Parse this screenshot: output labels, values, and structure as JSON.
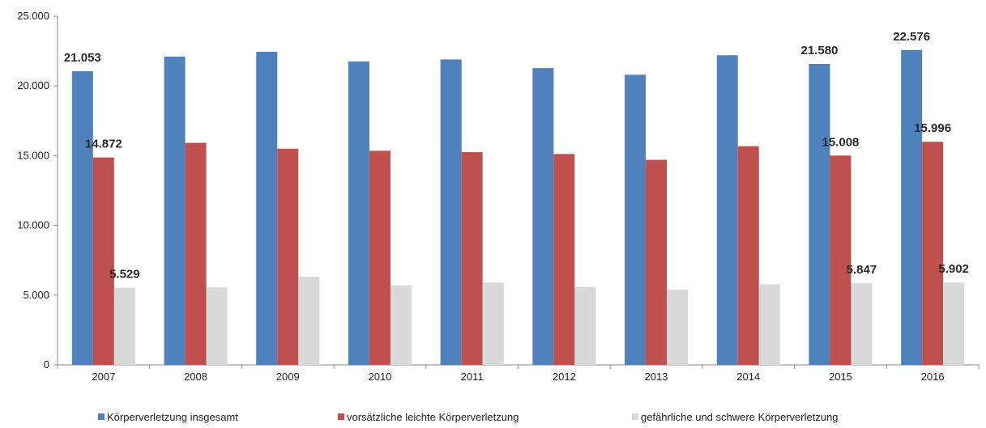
{
  "chart_data": {
    "type": "bar",
    "categories": [
      "2007",
      "2008",
      "2009",
      "2010",
      "2011",
      "2012",
      "2013",
      "2014",
      "2015",
      "2016"
    ],
    "series": [
      {
        "name": "Körperverletzung insgesamt",
        "color": "#4F81BD",
        "values": [
          21053,
          22100,
          22450,
          21750,
          21900,
          21280,
          20800,
          22200,
          21580,
          22576
        ],
        "labels": [
          "21.053",
          "",
          "",
          "",
          "",
          "",
          "",
          "",
          "21.580",
          "22.576"
        ]
      },
      {
        "name": "vorsätzliche leichte Körperverletzung",
        "color": "#C0504D",
        "values": [
          14872,
          15920,
          15500,
          15350,
          15250,
          15120,
          14700,
          15680,
          15008,
          15996
        ],
        "labels": [
          "14.872",
          "",
          "",
          "",
          "",
          "",
          "",
          "",
          "15.008",
          "15.996"
        ]
      },
      {
        "name": "gefährliche und schwere Körperverletzung",
        "color": "#D9D9D9",
        "values": [
          5529,
          5550,
          6330,
          5700,
          5900,
          5580,
          5400,
          5780,
          5847,
          5902
        ],
        "labels": [
          "5.529",
          "",
          "",
          "",
          "",
          "",
          "",
          "",
          "5.847",
          "5.902"
        ]
      }
    ],
    "yticks": [
      "0",
      "5.000",
      "10.000",
      "15.000",
      "20.000",
      "25.000"
    ],
    "ylim": [
      0,
      25000
    ],
    "grid": false,
    "legend_position": "bottom"
  }
}
